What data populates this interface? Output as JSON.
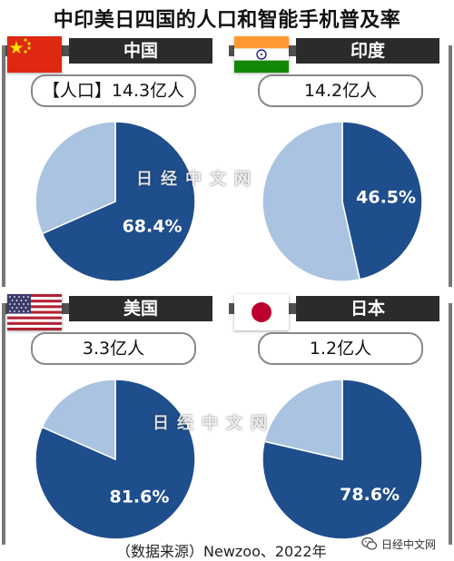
{
  "title": "中印美日四国的人口和智能手机普及率",
  "source": "（数据来源）Newzoo、2022年",
  "watermark": "日经中文网",
  "wechat_account": "日经中文网",
  "colors": {
    "dark": "#1f4e8c",
    "light": "#a9c3e0",
    "header": "#2b2b2b"
  },
  "chart_data": [
    {
      "type": "pie",
      "title": "中国",
      "population": "【人口】14.3亿人",
      "flag": "china-flag",
      "slices": [
        {
          "value": 68.4,
          "label": "68.4%",
          "color": "#1f4e8c"
        },
        {
          "value": 31.6,
          "label": "",
          "color": "#a9c3e0"
        }
      ]
    },
    {
      "type": "pie",
      "title": "印度",
      "population": "14.2亿人",
      "flag": "india-flag",
      "slices": [
        {
          "value": 46.5,
          "label": "46.5%",
          "color": "#1f4e8c"
        },
        {
          "value": 53.5,
          "label": "",
          "color": "#a9c3e0"
        }
      ]
    },
    {
      "type": "pie",
      "title": "美国",
      "population": "3.3亿人",
      "flag": "usa-flag",
      "slices": [
        {
          "value": 81.6,
          "label": "81.6%",
          "color": "#1f4e8c"
        },
        {
          "value": 18.4,
          "label": "",
          "color": "#a9c3e0"
        }
      ]
    },
    {
      "type": "pie",
      "title": "日本",
      "population": "1.2亿人",
      "flag": "japan-flag",
      "slices": [
        {
          "value": 78.6,
          "label": "78.6%",
          "color": "#1f4e8c"
        },
        {
          "value": 21.4,
          "label": "",
          "color": "#a9c3e0"
        }
      ]
    }
  ]
}
